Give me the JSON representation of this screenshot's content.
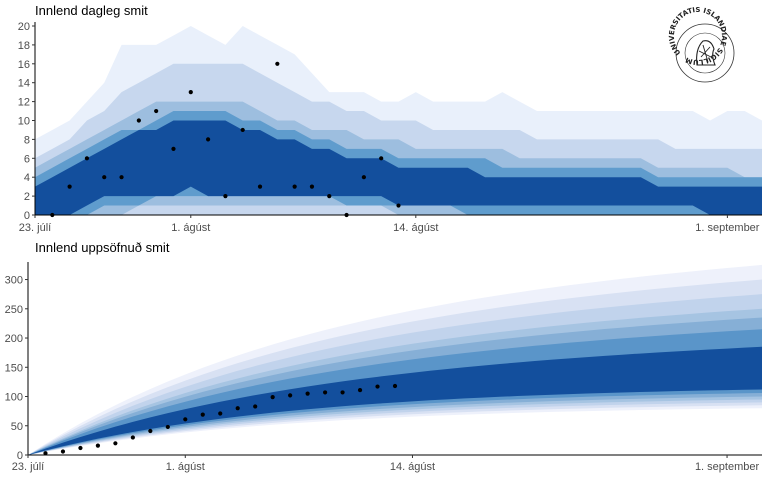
{
  "chart_data": [
    {
      "type": "area",
      "title": "Innlend dagleg smit",
      "xlabel": "",
      "ylabel": "",
      "x_start": "23. júlí",
      "x_end": "3. september",
      "xticks": [
        {
          "day": 0,
          "label": "23. júlí"
        },
        {
          "day": 9,
          "label": "1. ágúst"
        },
        {
          "day": 22,
          "label": "14. ágúst"
        },
        {
          "day": 40,
          "label": "1. september"
        }
      ],
      "ylim": [
        0,
        20
      ],
      "yticks": [
        0,
        2,
        4,
        6,
        8,
        10,
        12,
        14,
        16,
        18,
        20
      ],
      "band_colors": [
        "#e9f0fb",
        "#c7d7ee",
        "#9dbedf",
        "#5f9ccd",
        "#134f9d"
      ],
      "band_levels": [
        "95%",
        "90%",
        "80%",
        "70%",
        "50%"
      ],
      "bands_upper": [
        [
          8,
          9,
          10,
          12,
          14,
          18,
          18,
          18,
          19,
          20,
          19,
          18,
          20,
          19,
          18,
          17,
          15,
          13,
          13,
          13,
          12,
          12,
          13,
          12,
          12,
          12,
          12,
          13,
          12,
          11,
          11,
          11,
          11,
          11,
          11,
          11,
          11,
          11,
          11,
          10,
          11,
          11,
          10
        ],
        [
          6,
          7,
          8,
          10,
          11,
          13,
          14,
          15,
          16,
          16,
          16,
          16,
          16,
          15,
          14,
          13,
          12,
          12,
          11,
          11,
          10,
          10,
          10,
          9,
          9,
          9,
          9,
          9,
          9,
          8,
          8,
          8,
          8,
          8,
          8,
          8,
          8,
          7,
          7,
          7,
          7,
          7,
          7
        ],
        [
          5,
          6,
          7,
          8,
          9,
          10,
          11,
          12,
          12,
          12,
          12,
          12,
          12,
          11,
          10,
          10,
          9,
          9,
          9,
          8,
          8,
          8,
          7,
          7,
          7,
          7,
          7,
          7,
          6,
          6,
          6,
          6,
          6,
          6,
          6,
          6,
          5,
          5,
          5,
          5,
          5,
          4,
          4
        ],
        [
          4,
          5,
          6,
          7,
          8,
          9,
          9,
          10,
          11,
          11,
          11,
          11,
          10,
          10,
          9,
          9,
          8,
          8,
          7,
          7,
          7,
          6,
          6,
          6,
          6,
          6,
          6,
          5,
          5,
          5,
          5,
          5,
          5,
          5,
          5,
          5,
          4,
          4,
          4,
          4,
          4,
          4,
          4
        ],
        [
          3,
          4,
          5,
          6,
          7,
          8,
          9,
          9,
          10,
          10,
          10,
          10,
          9,
          9,
          8,
          8,
          7,
          7,
          6,
          6,
          6,
          5,
          5,
          5,
          5,
          5,
          4,
          4,
          4,
          4,
          4,
          4,
          4,
          4,
          4,
          4,
          3,
          3,
          3,
          3,
          3,
          3,
          3
        ]
      ],
      "bands_lower": [
        [
          0,
          0,
          0,
          0,
          0,
          0,
          0,
          0,
          0,
          0,
          0,
          0,
          0,
          0,
          0,
          0,
          0,
          0,
          0,
          0,
          0,
          0,
          0,
          0,
          0,
          0,
          0,
          0,
          0,
          0,
          0,
          0,
          0,
          0,
          0,
          0,
          0,
          0,
          0,
          0,
          0,
          0,
          0
        ],
        [
          0,
          0,
          0,
          0,
          0,
          0,
          0,
          0,
          0,
          0,
          0,
          0,
          0,
          0,
          0,
          0,
          0,
          0,
          0,
          0,
          0,
          0,
          0,
          0,
          0,
          0,
          0,
          0,
          0,
          0,
          0,
          0,
          0,
          0,
          0,
          0,
          0,
          0,
          0,
          0,
          0,
          0,
          0
        ],
        [
          0,
          0,
          0,
          0,
          0,
          0,
          1,
          1,
          1,
          1,
          1,
          1,
          1,
          1,
          1,
          1,
          1,
          1,
          1,
          1,
          1,
          0,
          0,
          0,
          0,
          0,
          0,
          0,
          0,
          0,
          0,
          0,
          0,
          0,
          0,
          0,
          0,
          0,
          0,
          0,
          0,
          0,
          0
        ],
        [
          0,
          0,
          0,
          0,
          1,
          1,
          1,
          2,
          2,
          2,
          2,
          2,
          2,
          2,
          2,
          2,
          2,
          2,
          1,
          1,
          1,
          1,
          1,
          1,
          1,
          0,
          0,
          0,
          0,
          0,
          0,
          0,
          0,
          0,
          0,
          0,
          0,
          0,
          0,
          0,
          0,
          0,
          0
        ],
        [
          0,
          0,
          0,
          1,
          2,
          2,
          2,
          2,
          2,
          3,
          2,
          2,
          2,
          2,
          2,
          2,
          2,
          2,
          2,
          2,
          2,
          1,
          1,
          1,
          1,
          1,
          1,
          1,
          1,
          1,
          1,
          1,
          1,
          1,
          1,
          1,
          1,
          1,
          1,
          0,
          0,
          0,
          0
        ]
      ],
      "points": [
        {
          "day": 1,
          "value": 0
        },
        {
          "day": 2,
          "value": 3
        },
        {
          "day": 3,
          "value": 6
        },
        {
          "day": 4,
          "value": 4
        },
        {
          "day": 5,
          "value": 4
        },
        {
          "day": 6,
          "value": 10
        },
        {
          "day": 7,
          "value": 11
        },
        {
          "day": 8,
          "value": 7
        },
        {
          "day": 9,
          "value": 13
        },
        {
          "day": 10,
          "value": 8
        },
        {
          "day": 11,
          "value": 2
        },
        {
          "day": 12,
          "value": 9
        },
        {
          "day": 13,
          "value": 3
        },
        {
          "day": 14,
          "value": 16
        },
        {
          "day": 15,
          "value": 3
        },
        {
          "day": 16,
          "value": 3
        },
        {
          "day": 17,
          "value": 2
        },
        {
          "day": 18,
          "value": 0
        },
        {
          "day": 19,
          "value": 4
        },
        {
          "day": 20,
          "value": 6
        },
        {
          "day": 21,
          "value": 1
        }
      ]
    },
    {
      "type": "area",
      "title": "Innlend uppsöfnuð smit",
      "xlabel": "",
      "ylabel": "",
      "x_start": "23. júlí",
      "x_end": "3. september",
      "xticks": [
        {
          "day": 0,
          "label": "23. júlí"
        },
        {
          "day": 9,
          "label": "1. ágúst"
        },
        {
          "day": 22,
          "label": "14. ágúst"
        },
        {
          "day": 40,
          "label": "1. september"
        }
      ],
      "ylim": [
        0,
        330
      ],
      "yticks": [
        0,
        50,
        100,
        150,
        200,
        250,
        300
      ],
      "band_colors": [
        "#eef1fb",
        "#d8e1f3",
        "#c1d3ec",
        "#a6c4e2",
        "#86afd6",
        "#5a95c9",
        "#134f9d"
      ],
      "band_levels": [
        "99%",
        "95%",
        "90%",
        "80%",
        "70%",
        "60%",
        "50%"
      ],
      "cum_upper": [
        325,
        300,
        275,
        250,
        235,
        215,
        185
      ],
      "cum_lower": [
        80,
        85,
        90,
        95,
        100,
        106,
        112
      ],
      "points": [
        {
          "day": 1,
          "value": 3
        },
        {
          "day": 2,
          "value": 6
        },
        {
          "day": 3,
          "value": 12
        },
        {
          "day": 4,
          "value": 16
        },
        {
          "day": 5,
          "value": 20
        },
        {
          "day": 6,
          "value": 30
        },
        {
          "day": 7,
          "value": 41
        },
        {
          "day": 8,
          "value": 48
        },
        {
          "day": 9,
          "value": 61
        },
        {
          "day": 10,
          "value": 69
        },
        {
          "day": 11,
          "value": 71
        },
        {
          "day": 12,
          "value": 80
        },
        {
          "day": 13,
          "value": 83
        },
        {
          "day": 14,
          "value": 99
        },
        {
          "day": 15,
          "value": 102
        },
        {
          "day": 16,
          "value": 105
        },
        {
          "day": 17,
          "value": 107
        },
        {
          "day": 18,
          "value": 107
        },
        {
          "day": 19,
          "value": 111
        },
        {
          "day": 20,
          "value": 117
        },
        {
          "day": 21,
          "value": 118
        }
      ]
    }
  ],
  "seal": {
    "text": "UNIVERSITATIS ISLANDIAE SIGILLUM"
  }
}
